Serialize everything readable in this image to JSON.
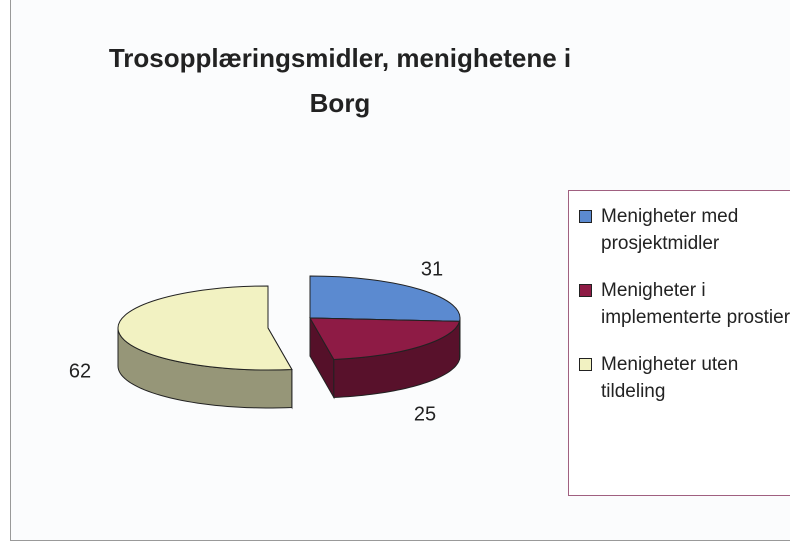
{
  "chart_data": {
    "type": "pie",
    "title": "Trosopplæringsmidler, menighetene i Borg",
    "categories": [
      "Menigheter med prosjektmidler",
      "Menigheter i implementerte prostier",
      "Menigheter uten tildeling"
    ],
    "values": [
      31,
      25,
      62
    ],
    "colors": [
      "#5b8ad0",
      "#8e1b45",
      "#f2f2c2"
    ],
    "legend": "right"
  }
}
